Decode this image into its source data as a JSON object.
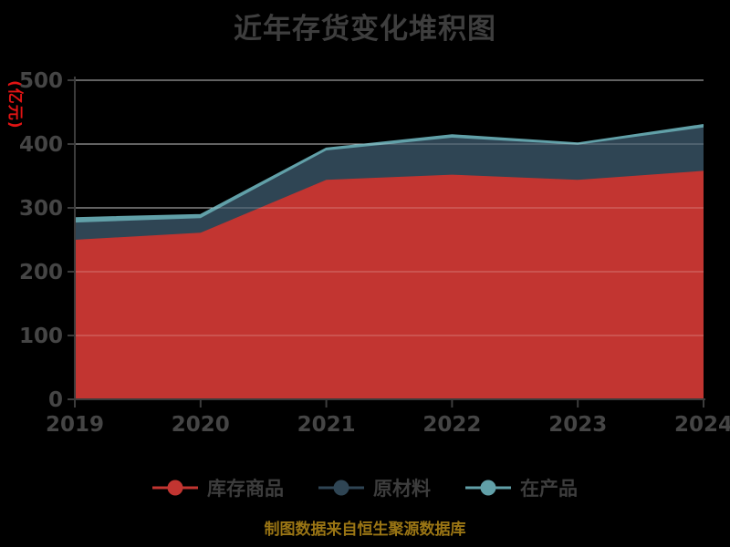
{
  "title": "近年存货变化堆积图",
  "y_axis_name": "(亿元)",
  "footer": "制图数据来自恒生聚源数据库",
  "colors": {
    "background": "#000000",
    "title_text": "#3e3e3e",
    "axis_line": "#3c3c3c",
    "tick_label": "#454545",
    "gridline": "#ababab",
    "gridline_overlay": "rgba(255,255,255,0.3)",
    "y_axis_name_text": "#e11414",
    "footer_text": "#9a7514",
    "legend_text": "#3d3d3d"
  },
  "chart_data": {
    "type": "area",
    "stacked": true,
    "title": "近年存货变化堆积图",
    "categories": [
      "2019",
      "2020",
      "2021",
      "2022",
      "2023",
      "2024"
    ],
    "series": [
      {
        "name": "库存商品",
        "color": "#c23531",
        "values": [
          250,
          261,
          344,
          352,
          344,
          358
        ]
      },
      {
        "name": "原材料",
        "color": "#2f4554",
        "values": [
          27,
          23,
          46,
          58,
          55,
          68
        ]
      },
      {
        "name": "在产品",
        "color": "#61a0a8",
        "values": [
          7,
          5,
          3,
          4,
          2,
          4
        ]
      }
    ],
    "xlabel": "",
    "ylabel": "(亿元)",
    "ylim": [
      0,
      500
    ],
    "y_ticks": [
      0,
      100,
      200,
      300,
      400,
      500
    ],
    "grid": true,
    "legend_position": "bottom"
  }
}
